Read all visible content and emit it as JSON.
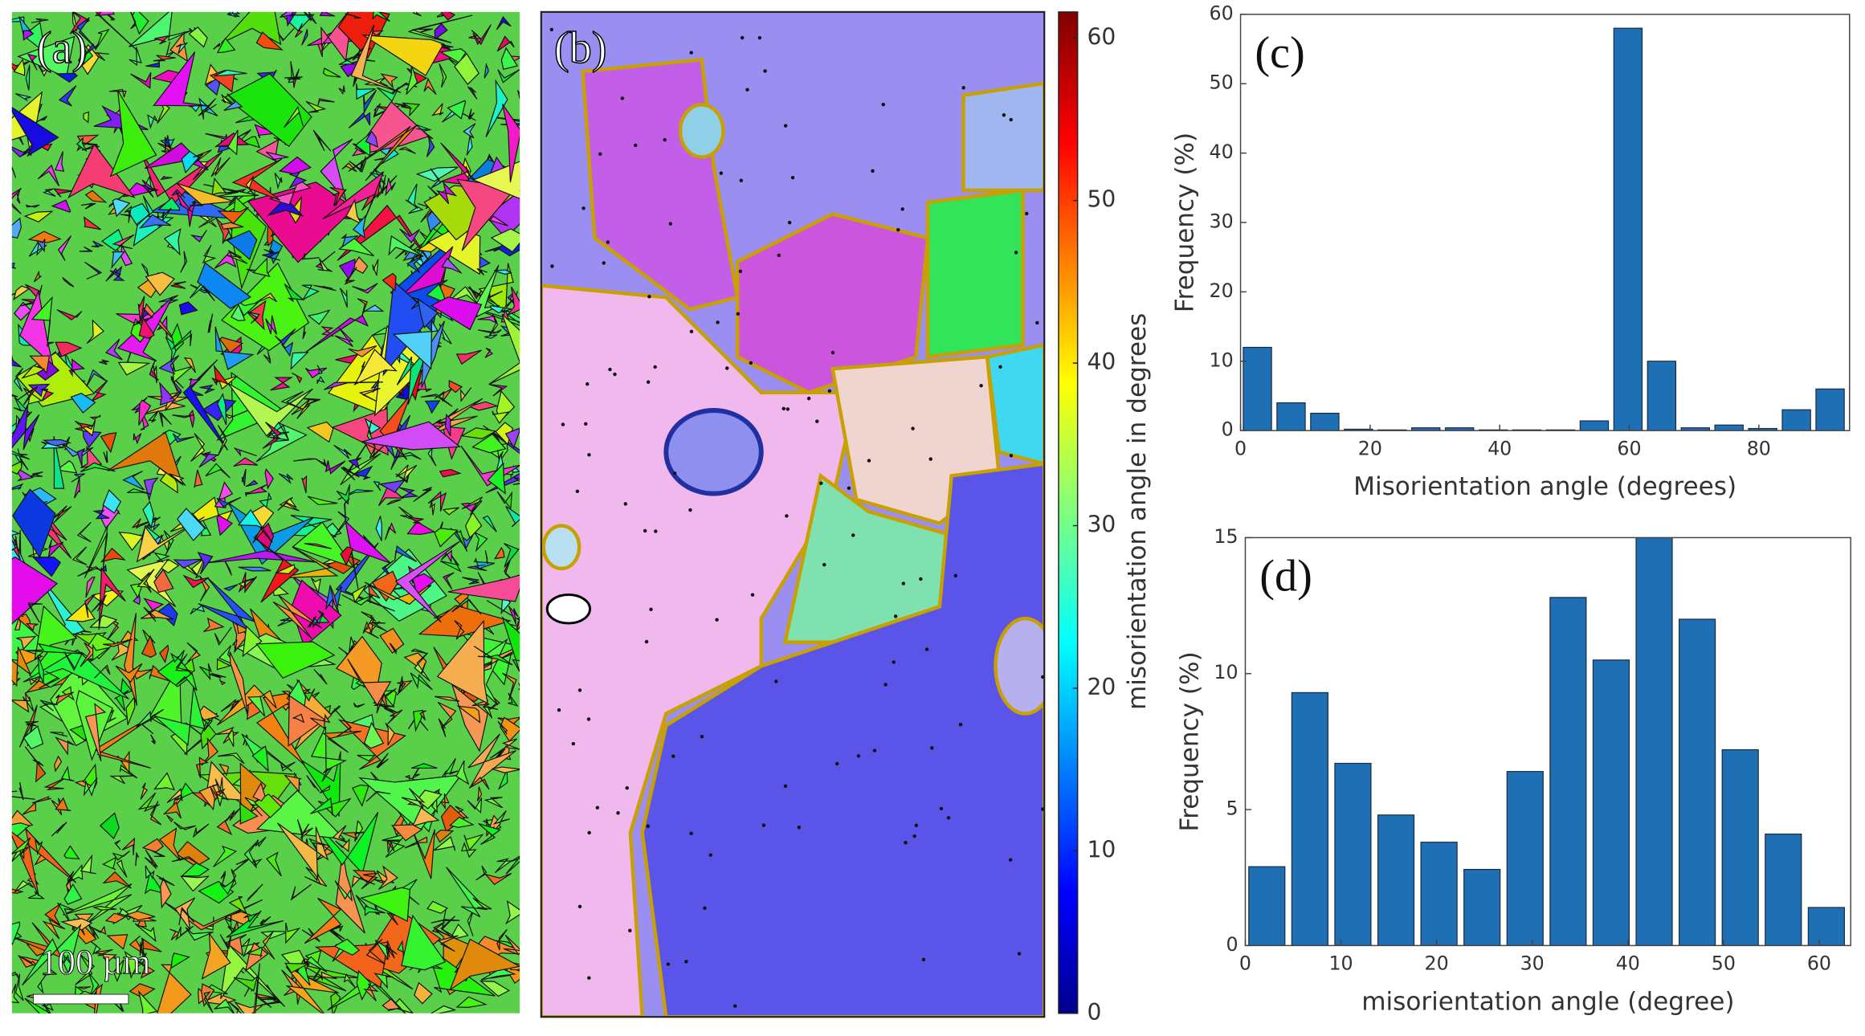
{
  "panels": {
    "a": "(a)",
    "b": "(b)",
    "scale_bar": "100 µm"
  },
  "chart_data": [
    {
      "type": "colorbar",
      "label": "misorientation angle in degrees",
      "ylim": [
        0,
        61.6
      ],
      "yticks": [
        0,
        10,
        20,
        30,
        40,
        50,
        60
      ]
    },
    {
      "type": "histogram",
      "label": "(c)",
      "xlabel": "Misorientation angle (degrees)",
      "ylabel": "Frequency (%)",
      "color": "#1f6fb4",
      "bins": [
        0,
        5.2,
        10.4,
        15.6,
        20.8,
        26,
        31.2,
        36.4,
        41.6,
        46.8,
        52,
        57.2,
        62.4,
        67.6,
        72.8,
        78,
        83.2,
        88.4,
        93.6
      ],
      "values": [
        12,
        4,
        2.5,
        0.2,
        0.1,
        0.4,
        0.4,
        0.1,
        0.1,
        0.1,
        1.4,
        58,
        10,
        0.4,
        0.8,
        0.3,
        3,
        6
      ],
      "xlim": [
        0,
        94
      ],
      "xticks": [
        0,
        20,
        40,
        60,
        80
      ],
      "ylim": [
        0,
        60
      ],
      "yticks": [
        0,
        10,
        20,
        30,
        40,
        50,
        60
      ]
    },
    {
      "type": "histogram",
      "label": "(d)",
      "xlabel": "misorientation angle (degree)",
      "ylabel": "Frequency (%)",
      "color": "#1f6fb4",
      "bins": [
        0,
        4.5,
        9,
        13.5,
        18,
        22.5,
        27,
        31.5,
        36,
        40.5,
        45,
        49.5,
        54,
        58.5,
        63
      ],
      "values": [
        2.9,
        9.3,
        6.7,
        4.8,
        3.8,
        2.8,
        6.4,
        12.8,
        10.5,
        15.3,
        12,
        7.2,
        4.1,
        1.4
      ],
      "xlim": [
        0,
        63.3
      ],
      "xticks": [
        0,
        10,
        20,
        30,
        40,
        50,
        60
      ],
      "ylim": [
        0,
        15
      ],
      "yticks": [
        0,
        5,
        10,
        15
      ]
    }
  ]
}
